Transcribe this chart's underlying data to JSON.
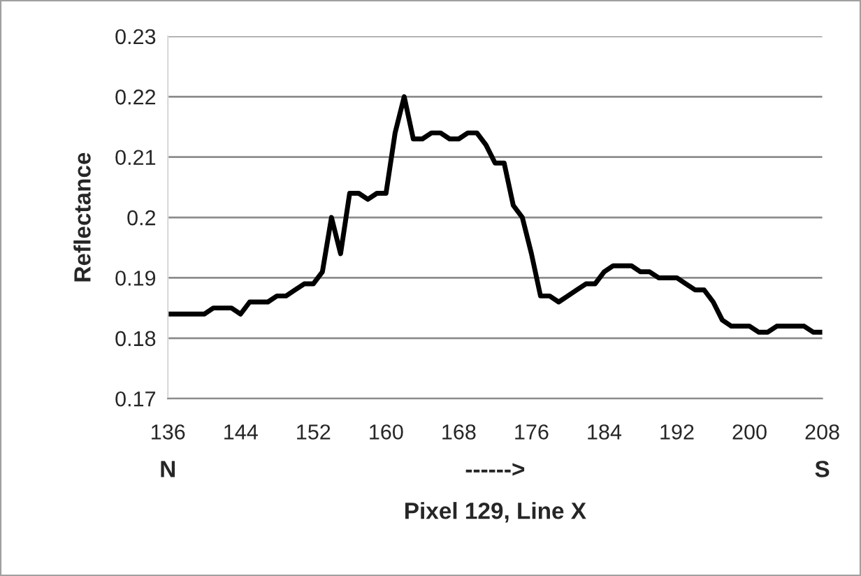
{
  "chart_data": {
    "type": "line",
    "xlabel": "Pixel 129, Line X",
    "ylabel": "Reflectance",
    "x": [
      136,
      137,
      138,
      139,
      140,
      141,
      142,
      143,
      144,
      145,
      146,
      147,
      148,
      149,
      150,
      151,
      152,
      153,
      154,
      155,
      156,
      157,
      158,
      159,
      160,
      161,
      162,
      163,
      164,
      165,
      166,
      167,
      168,
      169,
      170,
      171,
      172,
      173,
      174,
      175,
      176,
      177,
      178,
      179,
      180,
      181,
      182,
      183,
      184,
      185,
      186,
      187,
      188,
      189,
      190,
      191,
      192,
      193,
      194,
      195,
      196,
      197,
      198,
      199,
      200,
      201,
      202,
      203,
      204,
      205,
      206,
      207,
      208
    ],
    "series": [
      {
        "color": "#000000",
        "values": [
          0.184,
          0.184,
          0.184,
          0.184,
          0.184,
          0.185,
          0.185,
          0.185,
          0.184,
          0.186,
          0.186,
          0.186,
          0.187,
          0.187,
          0.188,
          0.189,
          0.189,
          0.191,
          0.2,
          0.194,
          0.204,
          0.204,
          0.203,
          0.204,
          0.204,
          0.214,
          0.22,
          0.213,
          0.213,
          0.214,
          0.214,
          0.213,
          0.213,
          0.214,
          0.214,
          0.212,
          0.209,
          0.209,
          0.202,
          0.2,
          0.194,
          0.187,
          0.187,
          0.186,
          0.187,
          0.188,
          0.189,
          0.189,
          0.191,
          0.192,
          0.192,
          0.192,
          0.191,
          0.191,
          0.19,
          0.19,
          0.19,
          0.189,
          0.188,
          0.188,
          0.186,
          0.183,
          0.182,
          0.182,
          0.182,
          0.181,
          0.181,
          0.182,
          0.182,
          0.182,
          0.182,
          0.181,
          0.181
        ]
      }
    ],
    "xlim": [
      136,
      208
    ],
    "xticks": [
      136,
      144,
      152,
      160,
      168,
      176,
      184,
      192,
      200,
      208
    ],
    "ylim": [
      0.17,
      0.23
    ],
    "yticks": [
      0.17,
      0.18,
      0.19,
      0.2,
      0.21,
      0.22,
      0.23
    ],
    "grid": "y",
    "legend": false,
    "marker": "none",
    "line_style": "solid",
    "annotations": [
      "N",
      "------>",
      "S"
    ]
  }
}
